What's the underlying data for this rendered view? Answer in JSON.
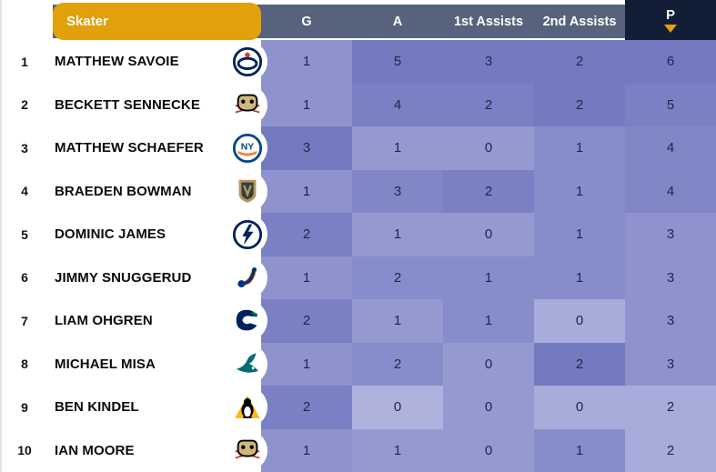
{
  "table": {
    "header": {
      "skater_label": "Skater",
      "g_label": "G",
      "a_label": "A",
      "a1_label": "1st Assists",
      "a2_label": "2nd Assists",
      "p_label": "P"
    },
    "sort": {
      "column": "p",
      "direction": "desc"
    },
    "rows": [
      {
        "rank": "1",
        "name": "MATTHEW SAVOIE",
        "team": "edmonton-oilers",
        "g": 1,
        "a": 5,
        "a1": 3,
        "a2": 2,
        "p": 6
      },
      {
        "rank": "2",
        "name": "BECKETT SENNECKE",
        "team": "anaheim-ducks",
        "g": 1,
        "a": 4,
        "a1": 2,
        "a2": 2,
        "p": 5
      },
      {
        "rank": "3",
        "name": "MATTHEW SCHAEFER",
        "team": "new-york-islanders",
        "g": 3,
        "a": 1,
        "a1": 0,
        "a2": 1,
        "p": 4
      },
      {
        "rank": "4",
        "name": "BRAEDEN BOWMAN",
        "team": "vegas-golden-knights",
        "g": 1,
        "a": 3,
        "a1": 2,
        "a2": 1,
        "p": 4
      },
      {
        "rank": "5",
        "name": "DOMINIC JAMES",
        "team": "tampa-bay-lightning",
        "g": 2,
        "a": 1,
        "a1": 0,
        "a2": 1,
        "p": 3
      },
      {
        "rank": "6",
        "name": "JIMMY SNUGGERUD",
        "team": "st-louis-blues",
        "g": 1,
        "a": 2,
        "a1": 1,
        "a2": 1,
        "p": 3
      },
      {
        "rank": "7",
        "name": "LIAM OHGREN",
        "team": "vancouver-canucks",
        "g": 2,
        "a": 1,
        "a1": 1,
        "a2": 0,
        "p": 3
      },
      {
        "rank": "8",
        "name": "MICHAEL MISA",
        "team": "san-jose-sharks",
        "g": 1,
        "a": 2,
        "a1": 0,
        "a2": 2,
        "p": 3
      },
      {
        "rank": "9",
        "name": "BEN KINDEL",
        "team": "pittsburgh-penguins",
        "g": 2,
        "a": 0,
        "a1": 0,
        "a2": 0,
        "p": 2
      },
      {
        "rank": "10",
        "name": "IAN MOORE",
        "team": "anaheim-ducks",
        "g": 1,
        "a": 1,
        "a1": 0,
        "a2": 1,
        "p": 2
      }
    ]
  },
  "colors": {
    "header_band": "#57637d",
    "header_active": "#121e35",
    "accent_gold": "#e2a10b",
    "heat_low": "#b4b8e0",
    "heat_high": "#747ac0",
    "cell_text": "#212749"
  }
}
